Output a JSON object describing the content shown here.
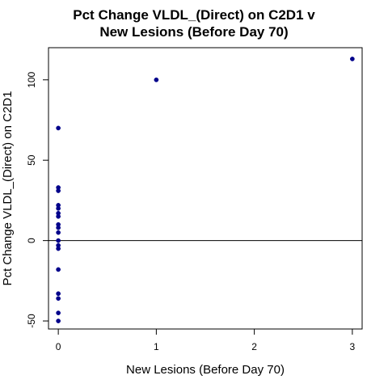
{
  "chart_data": {
    "type": "scatter",
    "title_lines": [
      "Pct Change VLDL_(Direct) on C2D1 v",
      "New Lesions (Before Day 70)"
    ],
    "xlabel": "New Lesions (Before Day 70)",
    "ylabel": "Pct Change VLDL_(Direct) on C2D1",
    "xlim": [
      -0.1,
      3.1
    ],
    "ylim": [
      -55,
      120
    ],
    "x_ticks": [
      0,
      1,
      2,
      3
    ],
    "y_ticks": [
      -50,
      0,
      50,
      100
    ],
    "reference_line_y": 0,
    "grid": false,
    "point_color": "#00008B",
    "points": [
      {
        "x": 0,
        "y": 70
      },
      {
        "x": 0,
        "y": 33
      },
      {
        "x": 0,
        "y": 31
      },
      {
        "x": 0,
        "y": 22
      },
      {
        "x": 0,
        "y": 20
      },
      {
        "x": 0,
        "y": 17
      },
      {
        "x": 0,
        "y": 15
      },
      {
        "x": 0,
        "y": 10
      },
      {
        "x": 0,
        "y": 8
      },
      {
        "x": 0,
        "y": 5
      },
      {
        "x": 0,
        "y": 0
      },
      {
        "x": 0,
        "y": -3
      },
      {
        "x": 0,
        "y": -5
      },
      {
        "x": 0,
        "y": -18
      },
      {
        "x": 0,
        "y": -33
      },
      {
        "x": 0,
        "y": -36
      },
      {
        "x": 0,
        "y": -45
      },
      {
        "x": 0,
        "y": -50
      },
      {
        "x": 1,
        "y": 100
      },
      {
        "x": 3,
        "y": 113
      }
    ]
  }
}
